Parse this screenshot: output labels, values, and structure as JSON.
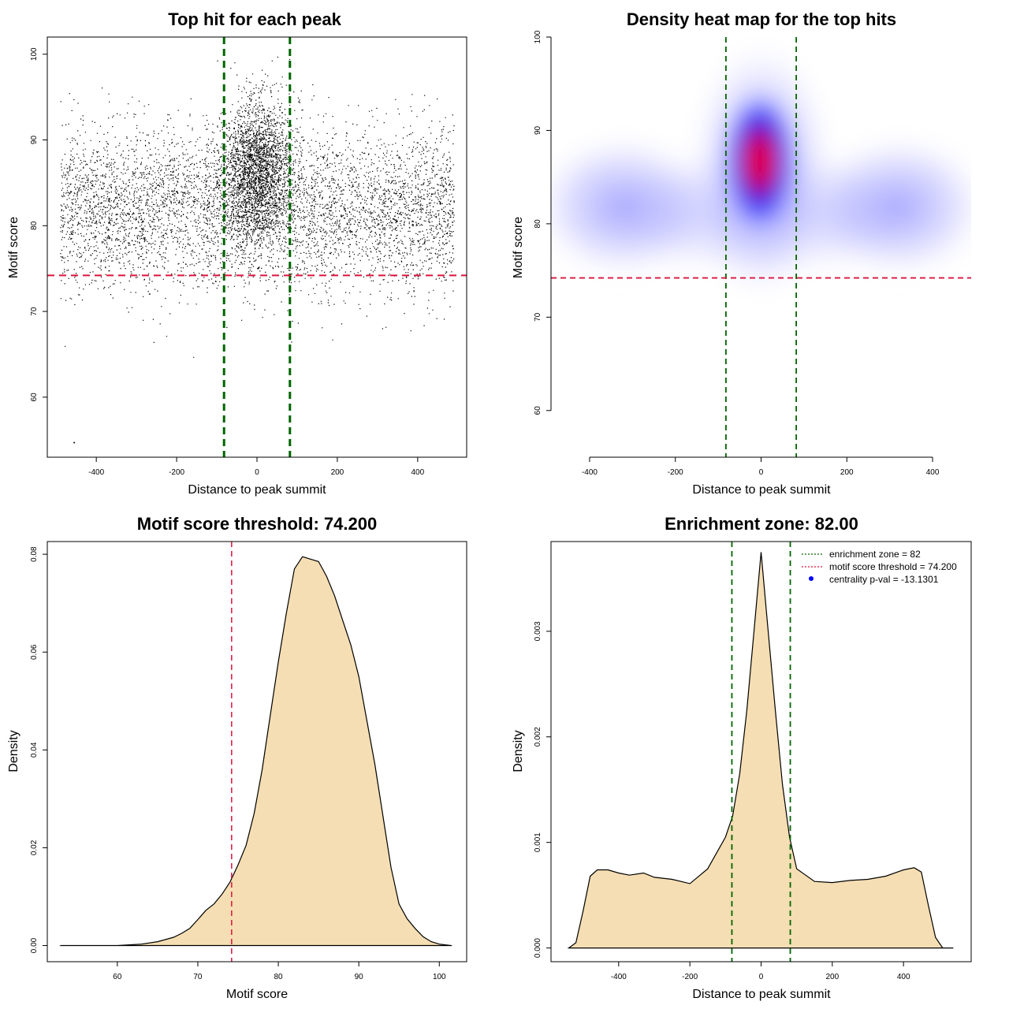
{
  "chart_data": [
    {
      "id": "scatter",
      "type": "scatter",
      "title": "Top hit for each peak",
      "xlabel": "Distance to peak summit",
      "ylabel": "Motif score",
      "xlim": [
        -522,
        522
      ],
      "ylim": [
        53,
        102
      ],
      "xticks": [
        -400,
        -200,
        0,
        200,
        400
      ],
      "yticks": [
        60,
        70,
        80,
        90,
        100
      ],
      "vlines": [
        -82,
        82
      ],
      "hline": 74.2,
      "vline_color": "#006400",
      "hline_color": "#dc143c",
      "point_color": "#000000",
      "outlier": {
        "x": -455,
        "y": 54.7
      }
    },
    {
      "id": "heatmap",
      "type": "heatmap",
      "title": "Density heat map for the top hits",
      "xlabel": "Distance to peak summit",
      "ylabel": "Motif score",
      "xlim": [
        -490,
        490
      ],
      "ylim": [
        55,
        100
      ],
      "xticks": [
        -400,
        -200,
        0,
        200,
        400
      ],
      "yticks": [
        60,
        70,
        80,
        90,
        100
      ],
      "vlines": [
        -82,
        82
      ],
      "hline": 74.2,
      "colors": [
        "#ffffff",
        "#0000ff",
        "#ff0000"
      ],
      "hotspot": {
        "x": 0,
        "y": 86.5
      }
    },
    {
      "id": "score_density",
      "type": "area",
      "title": "Motif score threshold: 74.200",
      "xlabel": "Motif score",
      "ylabel": "Density",
      "xlim": [
        51.3,
        103.4
      ],
      "ylim": [
        -0.0033,
        0.0826
      ],
      "xticks": [
        60,
        70,
        80,
        90,
        100
      ],
      "yticks": [
        0.0,
        0.02,
        0.04,
        0.06,
        0.08
      ],
      "ytick_labels": [
        "0.00",
        "0.02",
        "0.04",
        "0.06",
        "0.08"
      ],
      "vline": 74.2,
      "fill": "#f5deb3",
      "x": [
        53,
        60,
        63,
        65,
        67,
        68,
        69,
        70,
        71,
        72,
        73,
        74,
        75,
        76,
        77,
        78,
        79,
        80,
        81,
        82,
        83,
        84,
        85,
        86,
        87,
        88,
        89,
        90,
        91,
        92,
        93,
        94,
        95,
        96,
        97,
        98,
        99,
        100,
        101.5
      ],
      "y": [
        0,
        0,
        0.0003,
        0.0008,
        0.0017,
        0.0025,
        0.0035,
        0.0053,
        0.0072,
        0.0085,
        0.0105,
        0.013,
        0.0165,
        0.0205,
        0.027,
        0.036,
        0.047,
        0.058,
        0.068,
        0.077,
        0.0795,
        0.079,
        0.0785,
        0.0755,
        0.0715,
        0.0665,
        0.0615,
        0.055,
        0.046,
        0.037,
        0.0265,
        0.016,
        0.0085,
        0.0055,
        0.0035,
        0.0018,
        0.0008,
        0.0003,
        0
      ]
    },
    {
      "id": "distance_density",
      "type": "area",
      "title": "Enrichment zone: 82.00",
      "xlabel": "Distance to peak summit",
      "ylabel": "Density",
      "xlim": [
        -590,
        590
      ],
      "ylim": [
        -0.00013,
        0.00385
      ],
      "xticks": [
        -400,
        -200,
        0,
        200,
        400
      ],
      "yticks": [
        0.0,
        0.001,
        0.002,
        0.003
      ],
      "ytick_labels": [
        "0.000",
        "0.001",
        "0.002",
        "0.003"
      ],
      "vlines": [
        -82,
        82
      ],
      "fill": "#f5deb3",
      "x": [
        -540,
        -520,
        -500,
        -480,
        -460,
        -430,
        -400,
        -370,
        -330,
        -300,
        -250,
        -200,
        -150,
        -100,
        -80,
        -60,
        -40,
        -20,
        0,
        20,
        40,
        60,
        80,
        100,
        150,
        200,
        250,
        300,
        350,
        400,
        430,
        450,
        470,
        490,
        510,
        540
      ],
      "y": [
        0,
        5e-05,
        0.00035,
        0.00068,
        0.00074,
        0.00074,
        0.00071,
        0.00069,
        0.00071,
        0.00067,
        0.00065,
        0.00061,
        0.00075,
        0.00105,
        0.00125,
        0.00165,
        0.00225,
        0.003,
        0.00375,
        0.003,
        0.00225,
        0.00155,
        0.00105,
        0.00075,
        0.00063,
        0.00062,
        0.00064,
        0.00065,
        0.00068,
        0.00074,
        0.00076,
        0.00072,
        0.0004,
        0.0001,
        0,
        0
      ]
    }
  ],
  "legend": {
    "items": [
      {
        "label": "enrichment zone = 82",
        "color": "#006400",
        "symbol": "dotted-line"
      },
      {
        "label": "motif score threshold = 74.200",
        "color": "#dc143c",
        "symbol": "dotted-line"
      },
      {
        "label": "centrality p-val = -13.1301",
        "color": "#0000ff",
        "symbol": "dot"
      }
    ]
  }
}
